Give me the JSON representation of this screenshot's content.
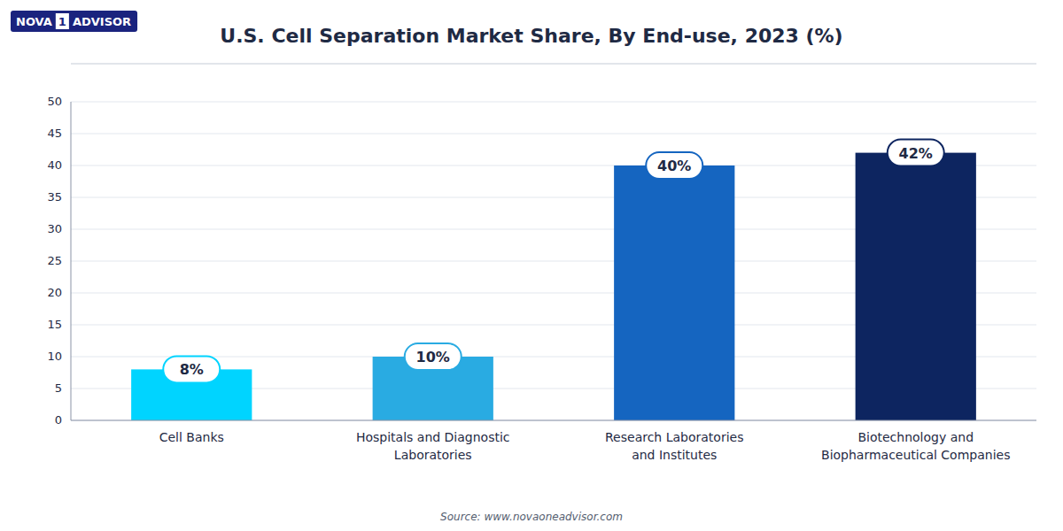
{
  "chart_data": {
    "type": "bar",
    "title": "U.S. Cell Separation Market Share, By End-use, 2023 (%)",
    "categories": [
      "Cell Banks",
      "Hospitals and Diagnostic\nLaboratories",
      "Research Laboratories\nand Institutes",
      "Biotechnology and\nBiopharmaceutical Companies"
    ],
    "values": [
      8,
      10,
      40,
      42
    ],
    "value_labels": [
      "8%",
      "10%",
      "40%",
      "42%"
    ],
    "data_labels": true,
    "colors": [
      "#00D4FF",
      "#29ABE2",
      "#1565C0",
      "#0D2560"
    ],
    "ylim": [
      0,
      50
    ],
    "yticks": [
      0,
      5,
      10,
      15,
      20,
      25,
      30,
      35,
      40,
      45,
      50
    ],
    "grid": true,
    "annotations": [
      "Source: www.novaoneadvisor.com",
      "NOVA",
      "1",
      "ADVISOR"
    ]
  }
}
